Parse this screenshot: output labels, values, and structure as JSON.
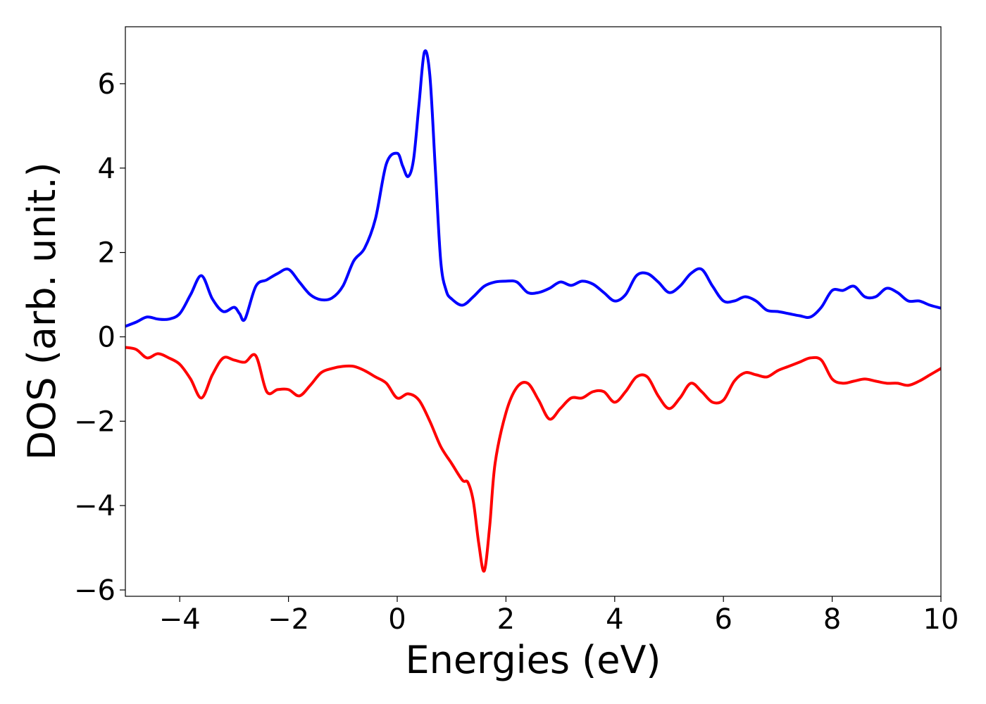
{
  "chart_data": {
    "type": "line",
    "title": "",
    "xlabel": "Energies (eV)",
    "ylabel": "DOS (arb. unit.)",
    "xlim": [
      -5,
      10
    ],
    "ylim": [
      -6.15,
      7.35
    ],
    "xticks": [
      -4,
      -2,
      0,
      2,
      4,
      6,
      8,
      10
    ],
    "yticks": [
      -6,
      -4,
      -2,
      0,
      2,
      4,
      6
    ],
    "xtick_labels": [
      "−4",
      "−2",
      "0",
      "2",
      "4",
      "6",
      "8",
      "10"
    ],
    "ytick_labels": [
      "−6",
      "−4",
      "−2",
      "0",
      "2",
      "4",
      "6"
    ],
    "grid": false,
    "legend": "none",
    "series": [
      {
        "color": "#0000ff",
        "x": [
          -5.0,
          -4.8,
          -4.6,
          -4.4,
          -4.2,
          -4.0,
          -3.8,
          -3.6,
          -3.4,
          -3.2,
          -3.0,
          -2.9,
          -2.8,
          -2.6,
          -2.4,
          -2.2,
          -2.0,
          -1.8,
          -1.6,
          -1.4,
          -1.2,
          -1.0,
          -0.8,
          -0.6,
          -0.4,
          -0.2,
          0.0,
          0.1,
          0.2,
          0.3,
          0.4,
          0.5,
          0.6,
          0.7,
          0.8,
          0.9,
          1.0,
          1.2,
          1.4,
          1.6,
          1.8,
          2.0,
          2.2,
          2.4,
          2.6,
          2.8,
          3.0,
          3.2,
          3.4,
          3.6,
          3.8,
          4.0,
          4.2,
          4.4,
          4.6,
          4.8,
          5.0,
          5.2,
          5.4,
          5.6,
          5.8,
          6.0,
          6.2,
          6.4,
          6.6,
          6.8,
          7.0,
          7.2,
          7.4,
          7.6,
          7.8,
          8.0,
          8.2,
          8.4,
          8.6,
          8.8,
          9.0,
          9.2,
          9.4,
          9.6,
          9.8,
          10.0
        ],
        "y": [
          0.25,
          0.35,
          0.47,
          0.42,
          0.42,
          0.55,
          1.0,
          1.45,
          0.9,
          0.6,
          0.7,
          0.55,
          0.42,
          1.2,
          1.35,
          1.5,
          1.6,
          1.3,
          1.0,
          0.88,
          0.92,
          1.2,
          1.8,
          2.1,
          2.8,
          4.1,
          4.35,
          4.05,
          3.8,
          4.2,
          5.5,
          6.75,
          6.2,
          4.0,
          1.8,
          1.1,
          0.9,
          0.75,
          0.95,
          1.2,
          1.3,
          1.32,
          1.3,
          1.05,
          1.05,
          1.15,
          1.3,
          1.22,
          1.32,
          1.25,
          1.05,
          0.85,
          1.0,
          1.45,
          1.5,
          1.3,
          1.05,
          1.2,
          1.5,
          1.6,
          1.2,
          0.85,
          0.85,
          0.95,
          0.85,
          0.63,
          0.6,
          0.55,
          0.5,
          0.47,
          0.7,
          1.1,
          1.1,
          1.2,
          0.95,
          0.95,
          1.15,
          1.05,
          0.85,
          0.85,
          0.75,
          0.68
        ]
      },
      {
        "color": "#ff0000",
        "x": [
          -5.0,
          -4.8,
          -4.6,
          -4.4,
          -4.2,
          -4.0,
          -3.8,
          -3.6,
          -3.4,
          -3.2,
          -3.0,
          -2.8,
          -2.6,
          -2.4,
          -2.2,
          -2.0,
          -1.8,
          -1.6,
          -1.4,
          -1.2,
          -1.0,
          -0.8,
          -0.6,
          -0.4,
          -0.2,
          0.0,
          0.2,
          0.4,
          0.6,
          0.8,
          1.0,
          1.2,
          1.3,
          1.4,
          1.5,
          1.6,
          1.7,
          1.8,
          2.0,
          2.2,
          2.4,
          2.6,
          2.8,
          3.0,
          3.2,
          3.4,
          3.6,
          3.8,
          4.0,
          4.2,
          4.4,
          4.6,
          4.8,
          5.0,
          5.2,
          5.4,
          5.6,
          5.8,
          6.0,
          6.2,
          6.4,
          6.6,
          6.8,
          7.0,
          7.2,
          7.4,
          7.6,
          7.8,
          8.0,
          8.2,
          8.4,
          8.6,
          8.8,
          9.0,
          9.2,
          9.4,
          9.6,
          9.8,
          10.0
        ],
        "y": [
          -0.25,
          -0.3,
          -0.5,
          -0.4,
          -0.5,
          -0.65,
          -1.0,
          -1.45,
          -0.9,
          -0.5,
          -0.55,
          -0.6,
          -0.45,
          -1.3,
          -1.25,
          -1.25,
          -1.4,
          -1.15,
          -0.85,
          -0.75,
          -0.7,
          -0.7,
          -0.8,
          -0.95,
          -1.1,
          -1.45,
          -1.35,
          -1.5,
          -2.0,
          -2.6,
          -3.0,
          -3.4,
          -3.45,
          -3.9,
          -4.9,
          -5.55,
          -4.5,
          -3.0,
          -1.8,
          -1.2,
          -1.1,
          -1.5,
          -1.95,
          -1.7,
          -1.45,
          -1.45,
          -1.3,
          -1.3,
          -1.55,
          -1.3,
          -0.95,
          -0.95,
          -1.4,
          -1.7,
          -1.45,
          -1.1,
          -1.3,
          -1.55,
          -1.5,
          -1.05,
          -0.85,
          -0.9,
          -0.95,
          -0.8,
          -0.7,
          -0.6,
          -0.5,
          -0.55,
          -1.0,
          -1.1,
          -1.05,
          -1.0,
          -1.05,
          -1.1,
          -1.1,
          -1.15,
          -1.05,
          -0.9,
          -0.75
        ]
      }
    ]
  }
}
